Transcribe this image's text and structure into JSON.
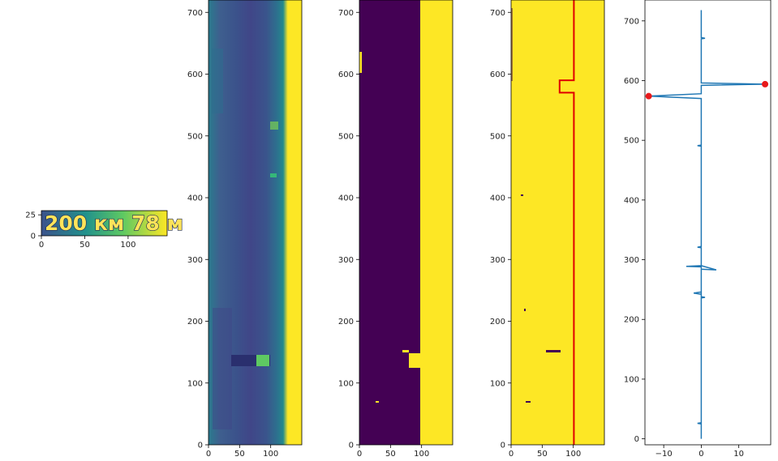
{
  "colors": {
    "yellow": "#fde725",
    "purple": "#440154",
    "teal": "#2c7f8e",
    "green": "#35b779",
    "line_blue": "#1f77b4",
    "marker_red": "#e8191b",
    "contour_red": "#e00000"
  },
  "chart_data": [
    {
      "type": "heatmap",
      "panel": "crop",
      "text_in_image": "200 км 78 м",
      "xlim": [
        0,
        145
      ],
      "ylim": [
        30,
        0
      ],
      "x_ticks": [
        0,
        50,
        100
      ],
      "x_tick_labels": [
        "0",
        "50",
        "100"
      ],
      "y_ticks": [
        0,
        25
      ],
      "y_tick_labels": [
        "0",
        "25"
      ],
      "colormap": "viridis",
      "grid": false
    },
    {
      "type": "heatmap",
      "panel": "grayscale",
      "xlim": [
        0,
        150
      ],
      "ylim": [
        720,
        0
      ],
      "x_ticks": [
        0,
        50,
        100
      ],
      "x_tick_labels": [
        "0",
        "50",
        "100"
      ],
      "y_ticks": [
        0,
        100,
        200,
        300,
        400,
        500,
        600,
        700
      ],
      "y_tick_labels": [
        "0",
        "100",
        "200",
        "300",
        "400",
        "500",
        "600",
        "700"
      ],
      "colormap": "viridis",
      "grid": false
    },
    {
      "type": "heatmap",
      "panel": "binary",
      "xlim": [
        0,
        150
      ],
      "ylim": [
        720,
        0
      ],
      "x_ticks": [
        0,
        50,
        100
      ],
      "x_tick_labels": [
        "0",
        "50",
        "100"
      ],
      "y_ticks": [
        0,
        100,
        200,
        300,
        400,
        500,
        600,
        700
      ],
      "y_tick_labels": [
        "0",
        "100",
        "200",
        "300",
        "400",
        "500",
        "600",
        "700"
      ],
      "colormap": "viridis",
      "grid": false
    },
    {
      "type": "heatmap",
      "panel": "edges-contour",
      "xlim": [
        0,
        150
      ],
      "ylim": [
        720,
        0
      ],
      "x_ticks": [
        0,
        50,
        100
      ],
      "x_tick_labels": [
        "0",
        "50",
        "100"
      ],
      "y_ticks": [
        0,
        100,
        200,
        300,
        400,
        500,
        600,
        700
      ],
      "y_tick_labels": [
        "0",
        "100",
        "200",
        "300",
        "400",
        "500",
        "600",
        "700"
      ],
      "contour": [
        [
          101,
          0
        ],
        [
          101,
          570
        ],
        [
          78,
          570
        ],
        [
          78,
          590
        ],
        [
          101,
          590
        ],
        [
          101,
          720
        ]
      ],
      "colormap": "viridis",
      "grid": false
    },
    {
      "type": "line",
      "panel": "profile",
      "xlim": [
        -15,
        18.5
      ],
      "ylim": [
        735,
        -10
      ],
      "x_ticks": [
        -10,
        0,
        10
      ],
      "x_tick_labels": [
        "−10",
        "0",
        "10"
      ],
      "y_ticks": [
        0,
        100,
        200,
        300,
        400,
        500,
        600,
        700
      ],
      "y_tick_labels": [
        "0",
        "100",
        "200",
        "300",
        "400",
        "500",
        "600",
        "700"
      ],
      "series": [
        {
          "x": [
            0,
            0,
            -1,
            0,
            0,
            -2,
            0,
            0,
            1,
            0,
            0,
            -4,
            0,
            4,
            0,
            0,
            -1,
            0,
            0,
            -1,
            0,
            0,
            -14,
            0,
            0,
            0,
            17,
            0,
            0,
            1,
            0,
            0
          ],
          "y": [
            0,
            25,
            26,
            27,
            242,
            244,
            246,
            236,
            237,
            238,
            288,
            289,
            290,
            283,
            284,
            320,
            321,
            322,
            490,
            491,
            492,
            570,
            574,
            578,
            590,
            592,
            594,
            596,
            670,
            671,
            672,
            718
          ]
        }
      ],
      "markers": [
        {
          "x": -14,
          "y": 574
        },
        {
          "x": 17,
          "y": 594
        }
      ],
      "grid": false
    }
  ]
}
